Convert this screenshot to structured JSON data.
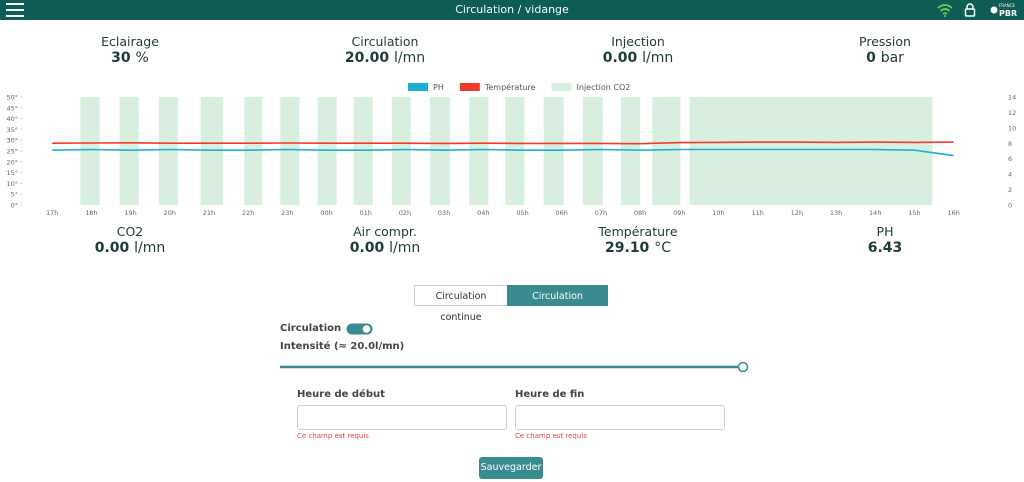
{
  "header": {
    "title": "Circulation / vidange",
    "logo_top": "FRANCE",
    "logo_bottom": "PBR"
  },
  "stats_top": [
    {
      "label": "Eclairage",
      "value": "30",
      "unit": "%"
    },
    {
      "label": "Circulation",
      "value": "20.00",
      "unit": "l/mn"
    },
    {
      "label": "Injection",
      "value": "0.00",
      "unit": "l/mn"
    },
    {
      "label": "Pression",
      "value": "0",
      "unit": "bar"
    }
  ],
  "chart_data": {
    "type": "line",
    "categories": [
      "17h",
      "18h",
      "19h",
      "20h",
      "21h",
      "22h",
      "23h",
      "00h",
      "01h",
      "02h",
      "03h",
      "04h",
      "05h",
      "06h",
      "07h",
      "08h",
      "09h",
      "10h",
      "11h",
      "12h",
      "13h",
      "14h",
      "15h",
      "16h"
    ],
    "xlim": [
      -0.26,
      23.8
    ],
    "ylim": [
      0,
      50
    ],
    "yticks": [
      {
        "value": 0,
        "label": "0°"
      },
      {
        "value": 5,
        "label": "5°"
      },
      {
        "value": 10,
        "label": "10°"
      },
      {
        "value": 15,
        "label": "15°"
      },
      {
        "value": 20,
        "label": "20°"
      },
      {
        "value": 25,
        "label": "25°"
      },
      {
        "value": 30,
        "label": "30°"
      },
      {
        "value": 35,
        "label": "35°"
      },
      {
        "value": 40,
        "label": "40°"
      },
      {
        "value": 45,
        "label": "45°"
      },
      {
        "value": 50,
        "label": "50°"
      }
    ],
    "y2lim": [
      0,
      14
    ],
    "y2ticks": [
      0,
      2,
      4,
      6,
      8,
      10,
      12,
      14
    ],
    "series": [
      {
        "name": "PH",
        "color": "#1ab0cf",
        "axis": "y2",
        "values": [
          7.1,
          7.2,
          7.1,
          7.2,
          7.1,
          7.1,
          7.2,
          7.1,
          7.1,
          7.2,
          7.1,
          7.2,
          7.1,
          7.1,
          7.2,
          7.1,
          7.2,
          7.2,
          7.2,
          7.2,
          7.2,
          7.2,
          7.1,
          6.4
        ]
      },
      {
        "name": "Température",
        "color": "#ef3b2c",
        "values": [
          28.6,
          28.7,
          28.8,
          28.6,
          28.6,
          28.6,
          28.7,
          28.6,
          28.6,
          28.6,
          28.5,
          28.6,
          28.5,
          28.5,
          28.5,
          28.4,
          28.9,
          29.0,
          29.1,
          29.1,
          29.0,
          29.1,
          29.0,
          29.1
        ]
      },
      {
        "name": "Injection CO2",
        "color": "#d8efe0",
        "intervals": [
          [
            0.72,
            1.21
          ],
          [
            1.72,
            2.21
          ],
          [
            2.72,
            3.21
          ],
          [
            3.79,
            4.36
          ],
          [
            4.9,
            5.36
          ],
          [
            5.82,
            6.31
          ],
          [
            6.77,
            7.26
          ],
          [
            7.69,
            8.18
          ],
          [
            8.67,
            9.15
          ],
          [
            9.64,
            10.15
          ],
          [
            10.64,
            11.13
          ],
          [
            11.56,
            12.05
          ],
          [
            12.54,
            13.05
          ],
          [
            13.54,
            14.05
          ],
          [
            14.51,
            15.0
          ],
          [
            15.31,
            16.03
          ],
          [
            16.26,
            22.46
          ]
        ]
      }
    ]
  },
  "stats_bottom": [
    {
      "label": "CO2",
      "value": "0.00",
      "unit": "l/mn"
    },
    {
      "label": "Air compr.",
      "value": "0.00",
      "unit": "l/mn"
    },
    {
      "label": "Température",
      "value": "29.10",
      "unit": "°C"
    },
    {
      "label": "PH",
      "value": "6.43",
      "unit": ""
    }
  ],
  "tabs": [
    "Circulation continue",
    "Circulation configurée"
  ],
  "form": {
    "toggle_label": "Circulation",
    "intensity": "Intensité (≈ 20.0l/mn)",
    "start_label": "Heure de début",
    "end_label": "Heure de fin",
    "start_error": "Ce champ est requis",
    "end_error": "Ce champ est requis",
    "save": "Sauvegarder"
  }
}
